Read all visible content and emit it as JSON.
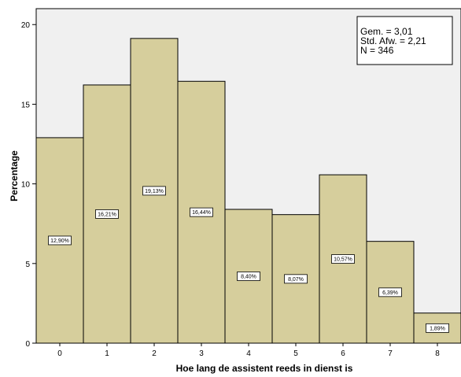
{
  "chart_data": {
    "type": "bar",
    "categories": [
      "0",
      "1",
      "2",
      "3",
      "4",
      "5",
      "6",
      "7",
      "8"
    ],
    "values": [
      12.9,
      16.21,
      19.13,
      16.44,
      8.4,
      8.07,
      10.57,
      6.39,
      1.89
    ],
    "data_labels": [
      "12,90%",
      "16,21%",
      "19,13%",
      "16,44%",
      "8,40%",
      "8,07%",
      "10,57%",
      "6,39%",
      "1,89%"
    ],
    "xlabel": "Hoe lang de assistent reeds in dienst is",
    "ylabel": "Percentage",
    "ylim": [
      0,
      21
    ],
    "yticks": [
      0,
      5,
      10,
      15,
      20
    ],
    "grid": false,
    "legend": "none",
    "stats": [
      "Gem. = 3,01",
      "Std. Afw. = 2,21",
      "N = 346"
    ],
    "bar_color": "#d6ce9c",
    "plot_background": "#f0f0f0",
    "edge_color": "#000000"
  }
}
